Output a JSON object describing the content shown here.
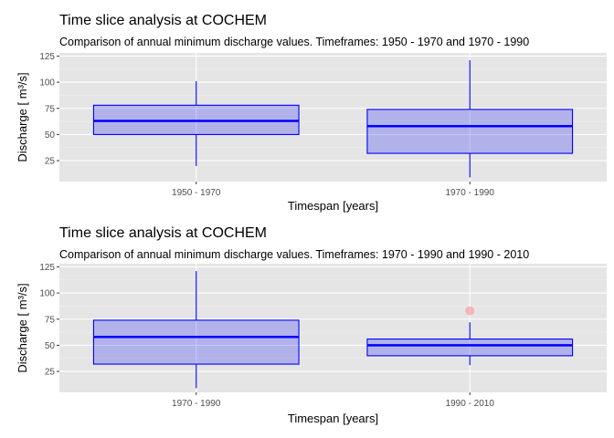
{
  "chart_data": [
    {
      "type": "boxplot",
      "title": "Time slice analysis at COCHEM",
      "subtitle": "Comparison of annual minimum discharge values. Timeframes: 1950 - 1970 and 1970 - 1990",
      "xlabel": "Timespan [years]",
      "ylabel": "Discharge [ m³/s]",
      "ylim": [
        5,
        128
      ],
      "yticks": [
        25,
        50,
        75,
        100,
        125
      ],
      "grid": true,
      "categories": [
        "1950 - 1970",
        "1970 - 1990"
      ],
      "boxes": [
        {
          "category": "1950 - 1970",
          "min": 20,
          "q1": 50,
          "median": 63,
          "q3": 78,
          "max": 101,
          "outliers": []
        },
        {
          "category": "1970 - 1990",
          "min": 9,
          "q1": 32,
          "median": 58,
          "q3": 74,
          "max": 121,
          "outliers": []
        }
      ],
      "colors": {
        "box_fill": "#0000ff",
        "box_stroke": "#0000ff",
        "outlier": "#ff8c8c",
        "panel": "#e5e5e5"
      }
    },
    {
      "type": "boxplot",
      "title": "Time slice analysis at COCHEM",
      "subtitle": "Comparison of annual minimum discharge values. Timeframes: 1970 - 1990 and 1990 - 2010",
      "xlabel": "Timespan [years]",
      "ylabel": "Discharge [ m³/s]",
      "ylim": [
        5,
        128
      ],
      "yticks": [
        25,
        50,
        75,
        100,
        125
      ],
      "grid": true,
      "categories": [
        "1970 - 1990",
        "1990 - 2010"
      ],
      "boxes": [
        {
          "category": "1970 - 1990",
          "min": 9,
          "q1": 32,
          "median": 58,
          "q3": 74,
          "max": 121,
          "outliers": []
        },
        {
          "category": "1990 - 2010",
          "min": 31,
          "q1": 40,
          "median": 50,
          "q3": 56,
          "max": 72,
          "outliers": [
            83
          ]
        }
      ],
      "colors": {
        "box_fill": "#0000ff",
        "box_stroke": "#0000ff",
        "outlier": "#ff8c8c",
        "panel": "#e5e5e5"
      }
    }
  ]
}
